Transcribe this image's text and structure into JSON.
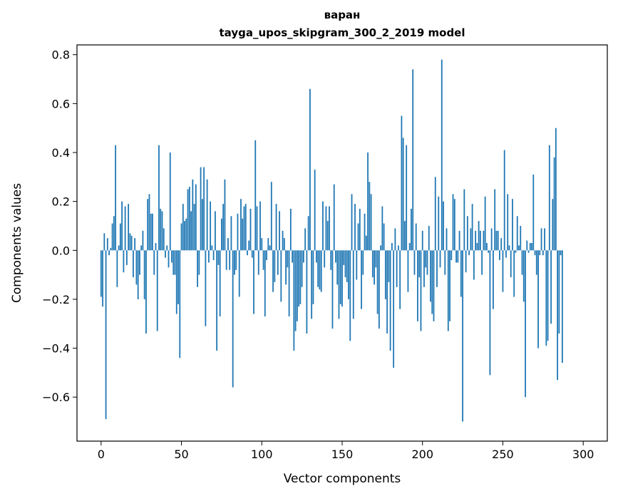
{
  "chart_data": {
    "type": "bar",
    "title": "варан",
    "subtitle": "tayga_upos_skipgram_300_2_2019 model",
    "xlabel": "Vector components",
    "ylabel": "Components values",
    "xlim": [
      -15,
      315
    ],
    "ylim": [
      -0.78,
      0.84
    ],
    "xticks": [
      0,
      50,
      100,
      150,
      200,
      250,
      300
    ],
    "yticks": [
      -0.6,
      -0.4,
      -0.2,
      0.0,
      0.2,
      0.4,
      0.6,
      0.8
    ],
    "xtick_labels": [
      "0",
      "50",
      "100",
      "150",
      "200",
      "250",
      "300"
    ],
    "ytick_labels": [
      "−0.6",
      "−0.4",
      "−0.2",
      "0.0",
      "0.2",
      "0.4",
      "0.6",
      "0.8"
    ],
    "grid": false,
    "legend": "none",
    "bar_color": "#1f77b4",
    "values": [
      -0.19,
      -0.23,
      0.07,
      -0.69,
      0.05,
      -0.02,
      0.01,
      0.11,
      0.14,
      0.43,
      -0.15,
      0.02,
      0.11,
      0.2,
      -0.09,
      0.18,
      -0.06,
      0.19,
      0.07,
      0.06,
      -0.11,
      0.05,
      -0.14,
      -0.2,
      -0.1,
      0.02,
      0.08,
      -0.2,
      -0.34,
      0.21,
      0.23,
      0.15,
      0.15,
      -0.1,
      0.03,
      -0.33,
      0.43,
      0.17,
      0.16,
      0.09,
      -0.03,
      0.02,
      -0.07,
      0.4,
      -0.05,
      -0.1,
      -0.1,
      -0.26,
      -0.22,
      -0.44,
      0.11,
      0.19,
      0.12,
      0.13,
      0.25,
      0.26,
      0.16,
      0.29,
      0.19,
      0.27,
      -0.15,
      -0.1,
      0.34,
      0.21,
      0.34,
      -0.31,
      0.29,
      -0.05,
      0.2,
      0.02,
      -0.04,
      0.16,
      -0.41,
      -0.06,
      -0.27,
      0.13,
      0.19,
      0.29,
      -0.08,
      0.05,
      -0.08,
      0.14,
      -0.56,
      -0.1,
      -0.08,
      0.15,
      -0.19,
      0.21,
      0.13,
      0.18,
      0.19,
      -0.02,
      0.04,
      0.17,
      -0.03,
      -0.26,
      0.45,
      0.18,
      -0.1,
      0.2,
      0.05,
      -0.08,
      -0.27,
      -0.04,
      0.05,
      0.02,
      0.28,
      -0.17,
      -0.13,
      0.19,
      -0.1,
      0.16,
      -0.21,
      0.08,
      0.05,
      -0.14,
      -0.07,
      -0.27,
      0.17,
      -0.05,
      -0.41,
      -0.33,
      -0.29,
      -0.23,
      -0.22,
      -0.15,
      -0.05,
      0.09,
      -0.34,
      0.14,
      0.66,
      -0.28,
      -0.22,
      0.33,
      -0.05,
      -0.15,
      -0.16,
      -0.17,
      0.2,
      -0.07,
      0.18,
      0.12,
      0.18,
      -0.08,
      -0.32,
      0.27,
      -0.05,
      -0.14,
      -0.28,
      -0.22,
      -0.23,
      -0.06,
      -0.11,
      -0.13,
      -0.2,
      -0.37,
      0.23,
      -0.28,
      0.19,
      -0.12,
      0.11,
      0.17,
      -0.24,
      -0.1,
      0.15,
      0.06,
      0.4,
      0.28,
      0.23,
      -0.11,
      -0.14,
      -0.07,
      -0.26,
      -0.32,
      0.02,
      0.18,
      0.11,
      -0.2,
      -0.34,
      -0.13,
      -0.41,
      0.03,
      -0.48,
      0.09,
      -0.15,
      0.02,
      -0.24,
      0.55,
      0.46,
      0.12,
      0.43,
      -0.17,
      0.03,
      0.17,
      0.74,
      -0.1,
      0.11,
      -0.29,
      -0.11,
      -0.33,
      0.08,
      -0.15,
      -0.07,
      -0.1,
      0.1,
      -0.21,
      -0.26,
      -0.29,
      0.3,
      -0.15,
      0.22,
      -0.07,
      0.78,
      0.2,
      -0.1,
      0.09,
      -0.33,
      -0.29,
      -0.04,
      0.23,
      0.21,
      -0.05,
      -0.05,
      0.08,
      -0.19,
      -0.7,
      0.25,
      -0.09,
      0.14,
      -0.02,
      0.09,
      0.19,
      -0.12,
      0.08,
      0.03,
      0.12,
      0.08,
      -0.1,
      0.08,
      0.22,
      0.03,
      -0.01,
      -0.51,
      0.09,
      -0.24,
      0.25,
      0.08,
      0.08,
      -0.04,
      0.05,
      -0.17,
      0.41,
      -0.03,
      0.23,
      0.02,
      -0.11,
      0.21,
      -0.19,
      -0.01,
      0.14,
      0.02,
      0.1,
      -0.1,
      -0.21,
      -0.6,
      0.04,
      -0.01,
      0.03,
      0.03,
      0.31,
      -0.02,
      -0.1,
      -0.4,
      -0.02,
      0.09,
      -0.02,
      0.09,
      -0.39,
      -0.37,
      0.43,
      -0.3,
      0.21,
      0.38,
      0.5,
      -0.53,
      -0.34,
      -0.02,
      -0.46
    ]
  }
}
